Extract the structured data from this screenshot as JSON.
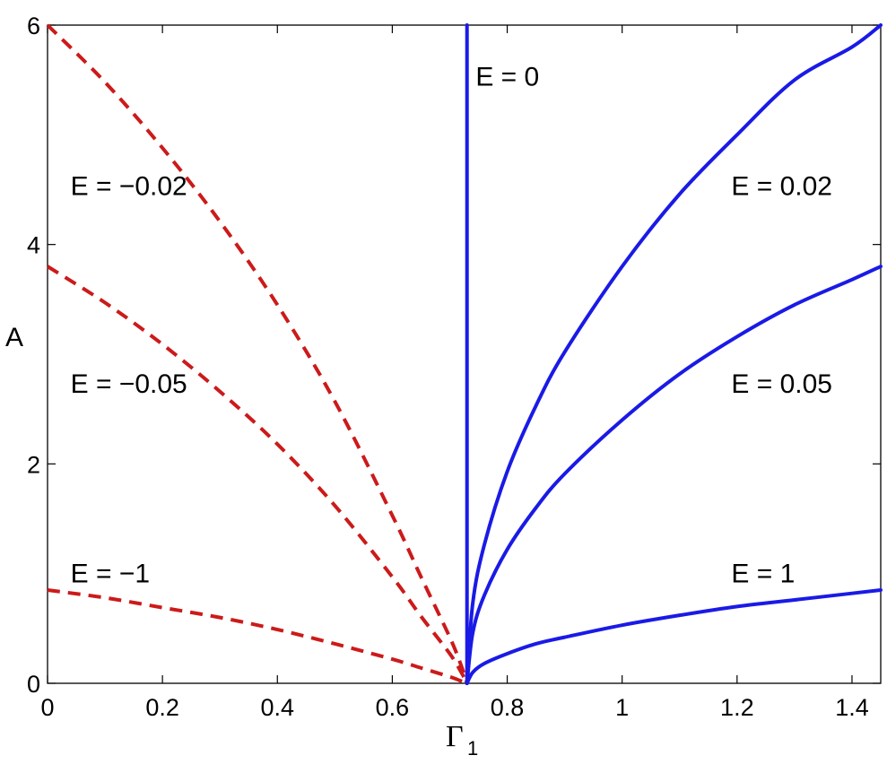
{
  "chart_data": {
    "type": "line",
    "xlabel": "Γ",
    "xlabel_subscript": "1",
    "ylabel": "A",
    "xlim": [
      0,
      1.45
    ],
    "ylim": [
      0,
      6
    ],
    "xticks": [
      0,
      0.2,
      0.4,
      0.6,
      0.8,
      1,
      1.2,
      1.4
    ],
    "xtick_labels": [
      "0",
      "0.2",
      "0.4",
      "0.6",
      "0.8",
      "1",
      "1.2",
      "1.4"
    ],
    "yticks": [
      0,
      2,
      4,
      6
    ],
    "ytick_labels": [
      "0",
      "2",
      "4",
      "6"
    ],
    "grid": false,
    "legend": "none",
    "colors": {
      "negative": "#cc1a1a",
      "positive": "#1a1ae6"
    },
    "series": [
      {
        "name": "E = −0.02",
        "style": "dashed",
        "color": "#cc1a1a",
        "x": [
          0,
          0.1,
          0.2,
          0.3,
          0.4,
          0.5,
          0.6,
          0.65,
          0.7,
          0.72,
          0.73
        ],
        "y": [
          6.0,
          5.48,
          4.88,
          4.21,
          3.45,
          2.57,
          1.53,
          0.97,
          0.42,
          0.16,
          0.0
        ]
      },
      {
        "name": "E = −0.05",
        "style": "dashed",
        "color": "#cc1a1a",
        "x": [
          0,
          0.1,
          0.2,
          0.3,
          0.4,
          0.5,
          0.6,
          0.65,
          0.7,
          0.72,
          0.73
        ],
        "y": [
          3.8,
          3.47,
          3.09,
          2.66,
          2.18,
          1.62,
          0.97,
          0.61,
          0.27,
          0.1,
          0.0
        ]
      },
      {
        "name": "E = −1",
        "style": "dashed",
        "color": "#cc1a1a",
        "x": [
          0,
          0.1,
          0.2,
          0.3,
          0.4,
          0.5,
          0.6,
          0.65,
          0.7,
          0.72,
          0.73
        ],
        "y": [
          0.85,
          0.78,
          0.69,
          0.6,
          0.49,
          0.36,
          0.22,
          0.14,
          0.06,
          0.02,
          0.0
        ]
      },
      {
        "name": "E = 0",
        "style": "solid",
        "color": "#1a1ae6",
        "x": [
          0.73,
          0.73
        ],
        "y": [
          0,
          6
        ]
      },
      {
        "name": "E = 0.02",
        "style": "solid",
        "color": "#1a1ae6",
        "x": [
          0.73,
          0.74,
          0.76,
          0.8,
          0.85,
          0.9,
          1.0,
          1.1,
          1.2,
          1.3,
          1.4,
          1.45
        ],
        "y": [
          0.0,
          0.73,
          1.26,
          1.93,
          2.53,
          3.02,
          3.8,
          4.46,
          5.0,
          5.5,
          5.8,
          6.0
        ]
      },
      {
        "name": "E = 0.05",
        "style": "solid",
        "color": "#1a1ae6",
        "x": [
          0.73,
          0.74,
          0.76,
          0.8,
          0.85,
          0.9,
          1.0,
          1.1,
          1.2,
          1.3,
          1.4,
          1.45
        ],
        "y": [
          0.0,
          0.46,
          0.8,
          1.22,
          1.6,
          1.91,
          2.4,
          2.82,
          3.16,
          3.45,
          3.68,
          3.8
        ]
      },
      {
        "name": "E = 1",
        "style": "solid",
        "color": "#1a1ae6",
        "x": [
          0.73,
          0.74,
          0.76,
          0.8,
          0.85,
          0.9,
          1.0,
          1.1,
          1.2,
          1.3,
          1.4,
          1.45
        ],
        "y": [
          0.0,
          0.1,
          0.18,
          0.27,
          0.36,
          0.42,
          0.53,
          0.62,
          0.7,
          0.76,
          0.82,
          0.85
        ]
      }
    ],
    "annotations": [
      {
        "text": "E = 0",
        "x": 0.745,
        "y": 5.45
      },
      {
        "text": "E = −0.02",
        "x": 0.04,
        "y": 4.45
      },
      {
        "text": "E = −0.05",
        "x": 0.04,
        "y": 2.65
      },
      {
        "text": "E = −1",
        "x": 0.04,
        "y": 0.92
      },
      {
        "text": "E = 0.02",
        "x": 1.19,
        "y": 4.45
      },
      {
        "text": "E = 0.05",
        "x": 1.19,
        "y": 2.65
      },
      {
        "text": "E = 1",
        "x": 1.19,
        "y": 0.92
      }
    ]
  }
}
